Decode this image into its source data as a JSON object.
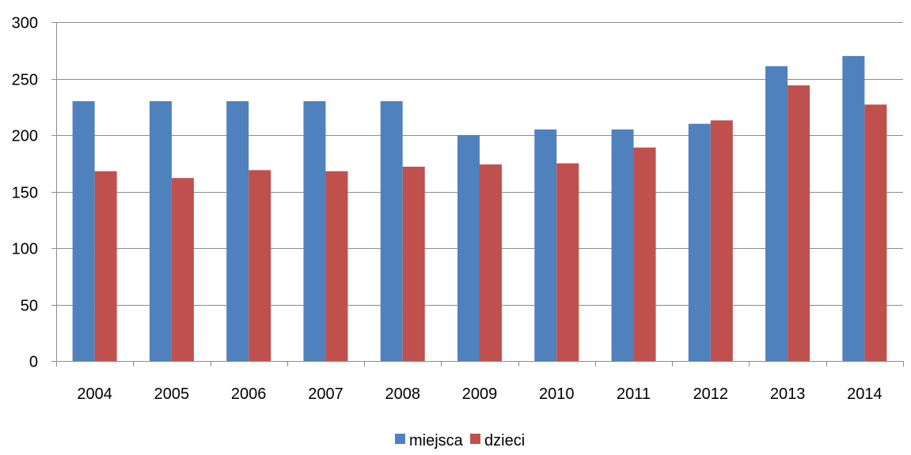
{
  "chart_data": {
    "type": "bar",
    "categories": [
      "2004",
      "2005",
      "2006",
      "2007",
      "2008",
      "2009",
      "2010",
      "2011",
      "2012",
      "2013",
      "2014"
    ],
    "series": [
      {
        "name": "miejsca",
        "color": "#4F81BD",
        "values": [
          230,
          230,
          230,
          230,
          230,
          200,
          205,
          205,
          210,
          261,
          270
        ]
      },
      {
        "name": "dzieci",
        "color": "#C0504D",
        "values": [
          168,
          162,
          169,
          168,
          172,
          174,
          175,
          189,
          213,
          244,
          227
        ]
      }
    ],
    "ylim": [
      0,
      300
    ],
    "yticks": [
      "0",
      "50",
      "100",
      "150",
      "200",
      "250",
      "300"
    ],
    "grid": true,
    "legend_position": "bottom-center"
  }
}
